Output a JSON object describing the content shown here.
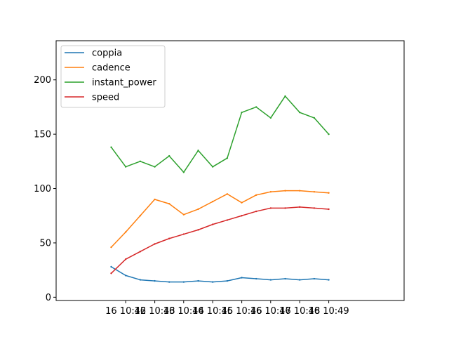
{
  "chart_data": {
    "type": "line",
    "title": "",
    "xlabel": "",
    "ylabel": "",
    "x_axis": {
      "range_minutes": [
        10.66,
        10.86
      ],
      "ticks": [
        {
          "label": "16 10:42",
          "minute": 10.7
        },
        {
          "label": "16 10:43",
          "minute": 10.7167
        },
        {
          "label": "16 10:44",
          "minute": 10.7333
        },
        {
          "label": "16 10:45",
          "minute": 10.75
        },
        {
          "label": "16 10:46",
          "minute": 10.7667
        },
        {
          "label": "16 10:47",
          "minute": 10.7833
        },
        {
          "label": "16 10:48",
          "minute": 10.8
        },
        {
          "label": "16 10:49",
          "minute": 10.8167
        }
      ]
    },
    "y_axis": {
      "range": [
        -3,
        236
      ],
      "ticks": [
        0,
        50,
        100,
        150,
        200
      ]
    },
    "grid": false,
    "legend_position": "top-left",
    "x_label_prefix": "16 10:",
    "x_minutes": [
      41.5,
      42.0,
      42.5,
      43.0,
      43.5,
      44.0,
      44.5,
      45.0,
      45.5,
      46.0,
      46.5,
      47.0,
      47.5,
      48.0,
      48.5,
      49.0
    ],
    "series": [
      {
        "name": "coppia",
        "color": "#1f77b4",
        "values": [
          28,
          20,
          16,
          15,
          14,
          14,
          15,
          14,
          15,
          18,
          17,
          16,
          17,
          16,
          17,
          16
        ]
      },
      {
        "name": "cadence",
        "color": "#ff7f0e",
        "values": [
          46,
          60,
          75,
          90,
          86,
          76,
          81,
          88,
          95,
          87,
          94,
          97,
          98,
          98,
          97,
          96
        ]
      },
      {
        "name": "instant_power",
        "color": "#2ca02c",
        "values": [
          138,
          120,
          125,
          120,
          130,
          115,
          135,
          120,
          128,
          170,
          175,
          165,
          185,
          170,
          165,
          150
        ]
      },
      {
        "name": "speed",
        "color": "#d62728",
        "values": [
          22,
          35,
          42,
          49,
          54,
          58,
          62,
          67,
          71,
          75,
          79,
          82,
          82,
          83,
          82,
          81
        ]
      }
    ]
  }
}
